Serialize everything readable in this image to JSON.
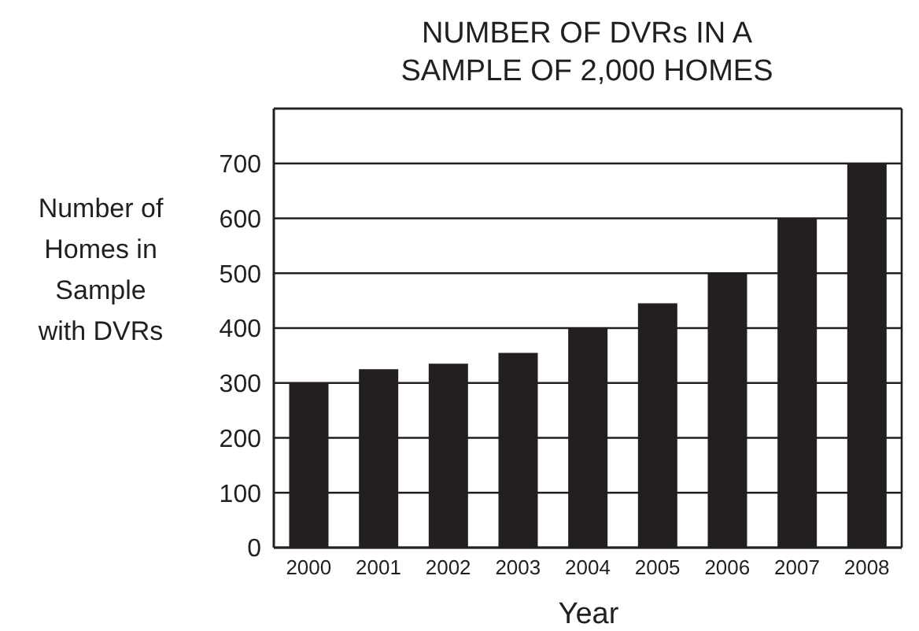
{
  "chart_data": {
    "type": "bar",
    "title": "NUMBER OF DVRs IN A SAMPLE OF 2,000 HOMES",
    "xlabel": "Year",
    "ylabel": "Number of Homes in Sample with DVRs",
    "categories": [
      "2000",
      "2001",
      "2002",
      "2003",
      "2004",
      "2005",
      "2006",
      "2007",
      "2008"
    ],
    "values": [
      300,
      325,
      335,
      355,
      400,
      445,
      500,
      600,
      700
    ],
    "color": "#231f20",
    "ylim": [
      0,
      800
    ],
    "yticks": [
      0,
      100,
      200,
      300,
      400,
      500,
      600,
      700
    ],
    "grid": "y",
    "legend": false
  }
}
